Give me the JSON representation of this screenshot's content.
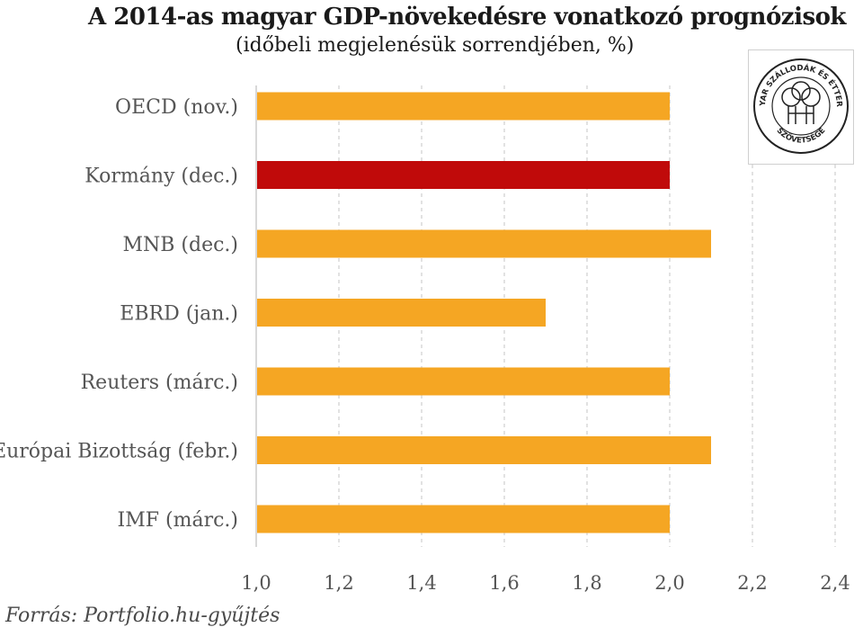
{
  "chart_data": {
    "type": "bar",
    "orientation": "horizontal",
    "title": "A 2014-as magyar GDP-növekedésre vonatkozó prognózisok",
    "subtitle": "(időbeli megjelenésük sorrendjében, %)",
    "categories": [
      "OECD (nov.)",
      "Kormány (dec.)",
      "MNB (dec.)",
      "EBRD (jan.)",
      "Reuters (márc.)",
      "Európai Bizottság (febr.)",
      "IMF (márc.)"
    ],
    "values": [
      2.0,
      2.0,
      2.1,
      1.7,
      2.0,
      2.1,
      2.0
    ],
    "highlight_index": 1,
    "xlim": [
      1.0,
      2.4
    ],
    "xticks": [
      "1,0",
      "1,2",
      "1,4",
      "1,6",
      "1,8",
      "2,0",
      "2,2",
      "2,4"
    ],
    "grid": "vertical dashed",
    "colors": {
      "bar": "#f5a623",
      "highlight": "#c00a0a"
    }
  },
  "source": "Forrás: Portfolio.hu-gyűjtés",
  "logo": {
    "text_top": "MAGYAR SZÁLLODÁK ÉS ÉTTERMEK",
    "text_bottom": "SZÖVETSÉGE"
  }
}
